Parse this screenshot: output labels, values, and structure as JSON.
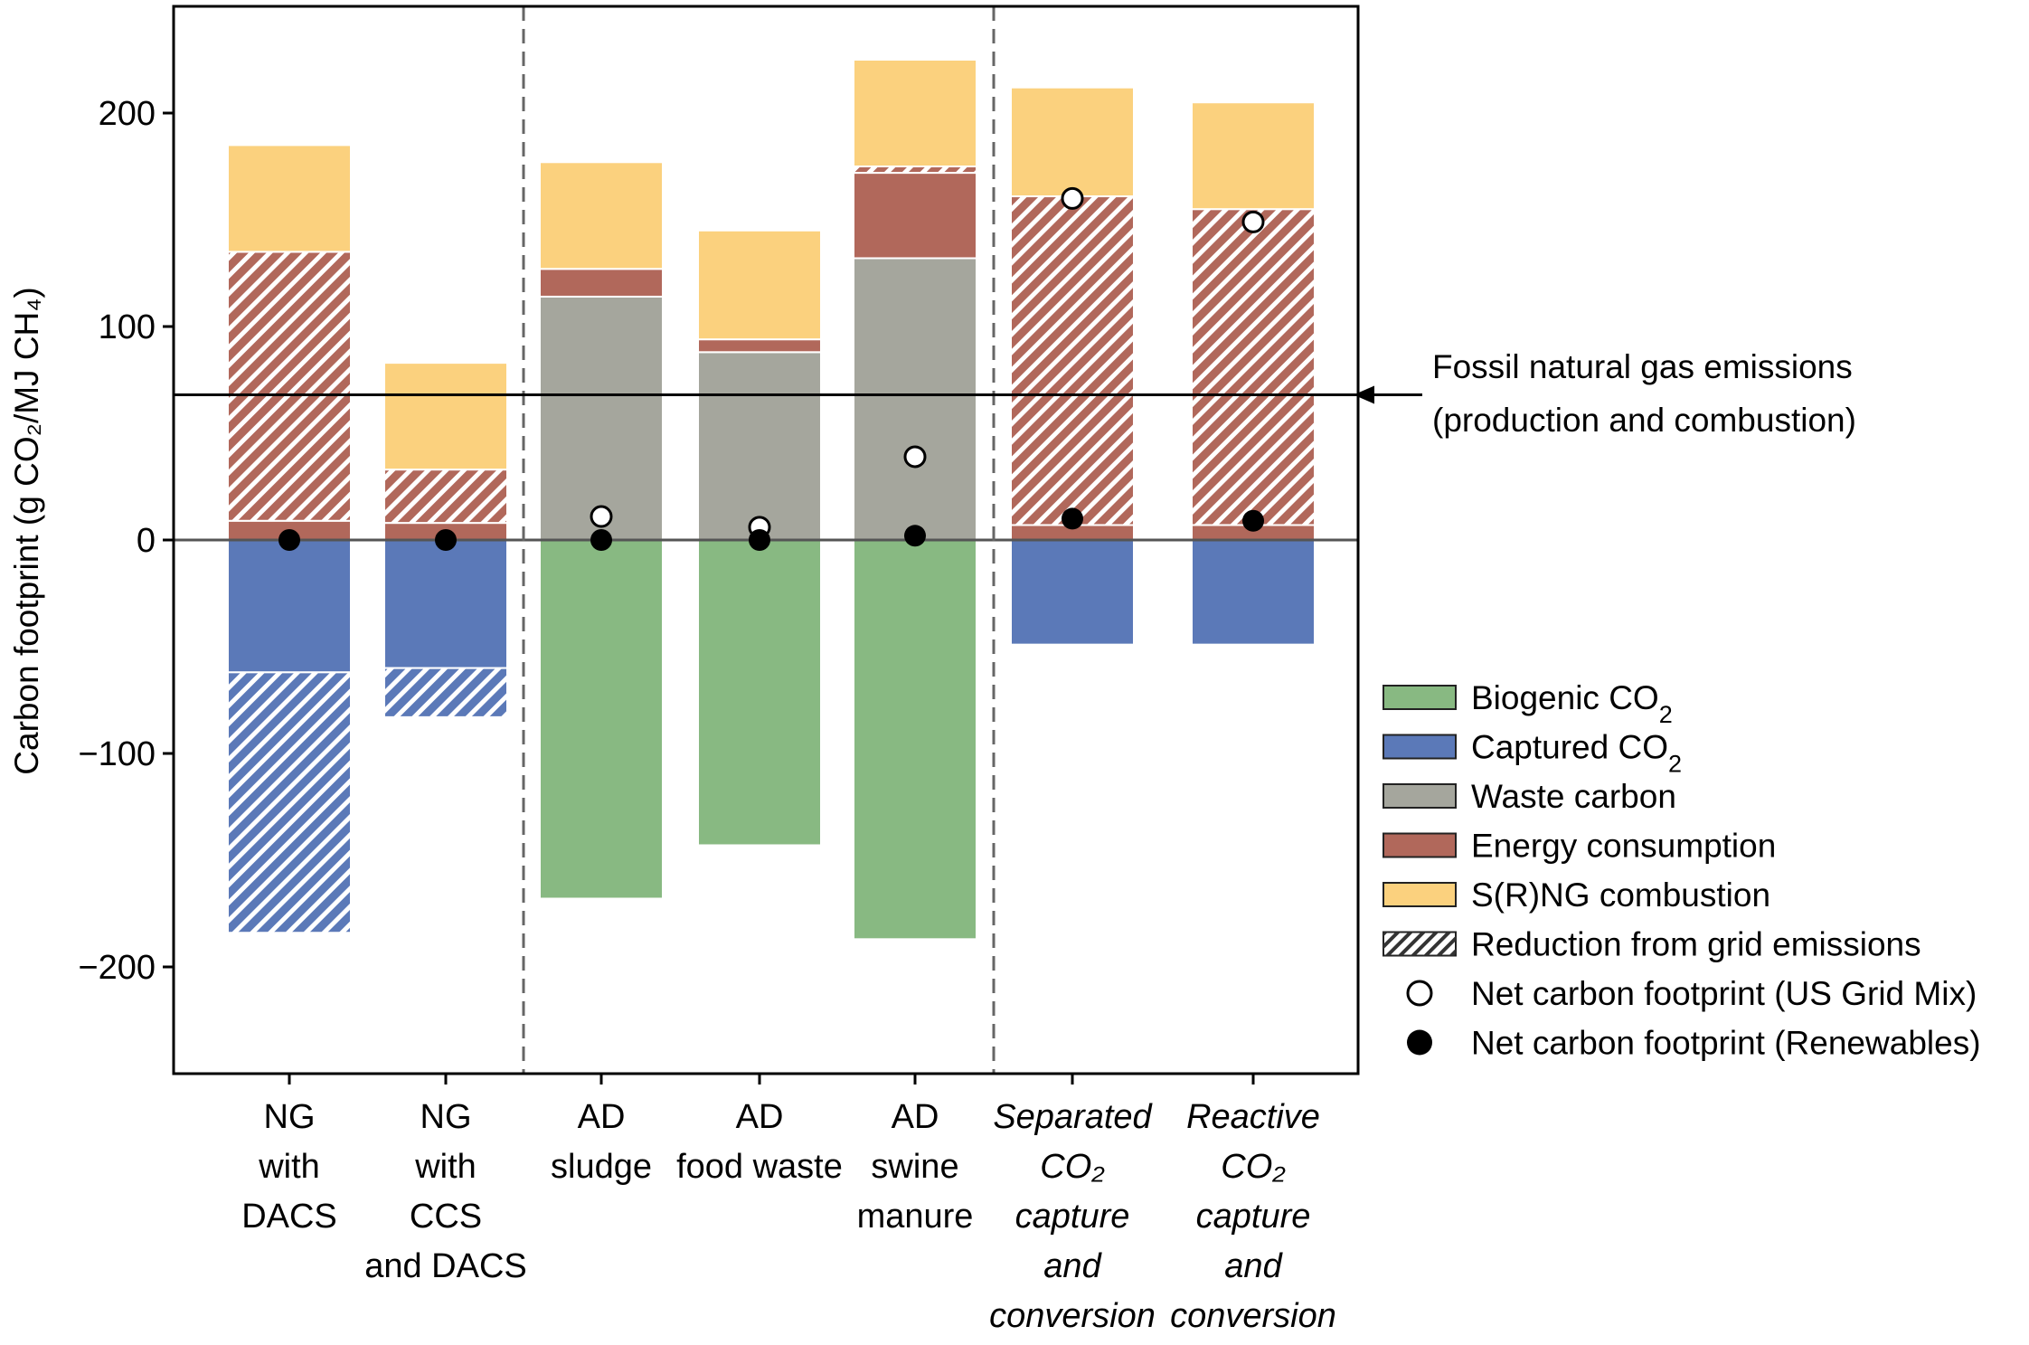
{
  "chart_data": {
    "type": "bar",
    "stacked": true,
    "ylabel": "Carbon footprint (g CO₂/MJ CH₄)",
    "ylim": [
      -250,
      250
    ],
    "yticks": [
      200,
      100,
      0,
      -100,
      -200
    ],
    "ytick_labels": [
      "200",
      "100",
      "0",
      "−100",
      "−200"
    ],
    "group_separators_after": [
      2,
      5
    ],
    "reference_line": {
      "value": 68,
      "label_lines": [
        "Fossil natural gas emissions",
        "(production and combustion)"
      ]
    },
    "zero_line": 0,
    "colors": {
      "biogenic": "#88b982",
      "captured": "#5b79b8",
      "waste": "#a5a69d",
      "energy": "#b1685b",
      "combustion": "#fbd17e"
    },
    "categories": [
      {
        "lines": [
          "NG",
          "with",
          "DACS"
        ],
        "italic": false
      },
      {
        "lines": [
          "NG",
          "with",
          "CCS",
          "and DACS"
        ],
        "italic": false
      },
      {
        "lines": [
          "AD",
          "sludge"
        ],
        "italic": false
      },
      {
        "lines": [
          "AD",
          "food waste"
        ],
        "italic": false
      },
      {
        "lines": [
          "AD",
          "swine",
          "manure"
        ],
        "italic": false
      },
      {
        "lines": [
          "Separated",
          "CO₂",
          "capture",
          "and",
          "conversion"
        ],
        "italic": true
      },
      {
        "lines": [
          "Reactive",
          "CO₂",
          "capture",
          "and",
          "conversion"
        ],
        "italic": true
      }
    ],
    "bars": [
      {
        "segments": [
          {
            "series": "Energy consumption",
            "color": "#b1685b",
            "from": 0,
            "to": 9,
            "hatch": false
          },
          {
            "series": "Energy consumption",
            "color": "#b1685b",
            "from": 9,
            "to": 135,
            "hatch": true
          },
          {
            "series": "S(R)NG combustion",
            "color": "#fbd17e",
            "from": 135,
            "to": 185,
            "hatch": false
          },
          {
            "series": "Captured CO₂",
            "color": "#5b79b8",
            "from": 0,
            "to": -62,
            "hatch": false
          },
          {
            "series": "Captured CO₂",
            "color": "#5b79b8",
            "from": -62,
            "to": -184,
            "hatch": true
          }
        ],
        "net_us": null,
        "net_renew": 0
      },
      {
        "segments": [
          {
            "series": "Energy consumption",
            "color": "#b1685b",
            "from": 0,
            "to": 8,
            "hatch": false
          },
          {
            "series": "Energy consumption",
            "color": "#b1685b",
            "from": 8,
            "to": 33,
            "hatch": true
          },
          {
            "series": "S(R)NG combustion",
            "color": "#fbd17e",
            "from": 33,
            "to": 83,
            "hatch": false
          },
          {
            "series": "Captured CO₂",
            "color": "#5b79b8",
            "from": 0,
            "to": -60,
            "hatch": false
          },
          {
            "series": "Captured CO₂",
            "color": "#5b79b8",
            "from": -60,
            "to": -83,
            "hatch": true
          }
        ],
        "net_us": null,
        "net_renew": 0
      },
      {
        "segments": [
          {
            "series": "Waste carbon",
            "color": "#a5a69d",
            "from": 0,
            "to": 114,
            "hatch": false
          },
          {
            "series": "Energy consumption",
            "color": "#b1685b",
            "from": 114,
            "to": 127,
            "hatch": false
          },
          {
            "series": "S(R)NG combustion",
            "color": "#fbd17e",
            "from": 127,
            "to": 177,
            "hatch": false
          },
          {
            "series": "Biogenic CO₂",
            "color": "#88b982",
            "from": 0,
            "to": -168,
            "hatch": false
          }
        ],
        "net_us": 11,
        "net_renew": 0
      },
      {
        "segments": [
          {
            "series": "Waste carbon",
            "color": "#a5a69d",
            "from": 0,
            "to": 88,
            "hatch": false
          },
          {
            "series": "Energy consumption",
            "color": "#b1685b",
            "from": 88,
            "to": 94,
            "hatch": false
          },
          {
            "series": "S(R)NG combustion",
            "color": "#fbd17e",
            "from": 94,
            "to": 145,
            "hatch": false
          },
          {
            "series": "Biogenic CO₂",
            "color": "#88b982",
            "from": 0,
            "to": -143,
            "hatch": false
          }
        ],
        "net_us": 6,
        "net_renew": 0
      },
      {
        "segments": [
          {
            "series": "Waste carbon",
            "color": "#a5a69d",
            "from": 0,
            "to": 132,
            "hatch": false
          },
          {
            "series": "Energy consumption",
            "color": "#b1685b",
            "from": 132,
            "to": 172,
            "hatch": false
          },
          {
            "series": "Energy consumption",
            "color": "#b1685b",
            "from": 172,
            "to": 175,
            "hatch": true
          },
          {
            "series": "S(R)NG combustion",
            "color": "#fbd17e",
            "from": 175,
            "to": 225,
            "hatch": false
          },
          {
            "series": "Biogenic CO₂",
            "color": "#88b982",
            "from": 0,
            "to": -187,
            "hatch": false
          }
        ],
        "net_us": 39,
        "net_renew": 2
      },
      {
        "segments": [
          {
            "series": "Energy consumption",
            "color": "#b1685b",
            "from": 0,
            "to": 7,
            "hatch": false
          },
          {
            "series": "Energy consumption",
            "color": "#b1685b",
            "from": 7,
            "to": 161,
            "hatch": true
          },
          {
            "series": "S(R)NG combustion",
            "color": "#fbd17e",
            "from": 161,
            "to": 212,
            "hatch": false
          },
          {
            "series": "Captured CO₂",
            "color": "#5b79b8",
            "from": 0,
            "to": -49,
            "hatch": false
          }
        ],
        "net_us": 160,
        "net_renew": 10
      },
      {
        "segments": [
          {
            "series": "Energy consumption",
            "color": "#b1685b",
            "from": 0,
            "to": 7,
            "hatch": false
          },
          {
            "series": "Energy consumption",
            "color": "#b1685b",
            "from": 7,
            "to": 155,
            "hatch": true
          },
          {
            "series": "S(R)NG combustion",
            "color": "#fbd17e",
            "from": 155,
            "to": 205,
            "hatch": false
          },
          {
            "series": "Captured CO₂",
            "color": "#5b79b8",
            "from": 0,
            "to": -49,
            "hatch": false
          }
        ],
        "net_us": 149,
        "net_renew": 9
      }
    ],
    "legend": {
      "position": "right",
      "entries": [
        {
          "kind": "patch",
          "label": "Biogenic CO",
          "sub": "2",
          "color": "#88b982"
        },
        {
          "kind": "patch",
          "label": "Captured CO",
          "sub": "2",
          "color": "#5b79b8"
        },
        {
          "kind": "patch",
          "label": "Waste carbon",
          "sub": "",
          "color": "#a5a69d"
        },
        {
          "kind": "patch",
          "label": "Energy consumption",
          "sub": "",
          "color": "#b1685b"
        },
        {
          "kind": "patch",
          "label": "S(R)NG combustion",
          "sub": "",
          "color": "#fbd17e"
        },
        {
          "kind": "hatch",
          "label": "Reduction from grid emissions",
          "sub": "",
          "color": "#ffffff"
        },
        {
          "kind": "open-marker",
          "label": "Net carbon footprint (US Grid Mix)",
          "sub": "",
          "color": "#ffffff"
        },
        {
          "kind": "filled-marker",
          "label": "Net carbon footprint (Renewables)",
          "sub": "",
          "color": "#000000"
        }
      ]
    }
  }
}
